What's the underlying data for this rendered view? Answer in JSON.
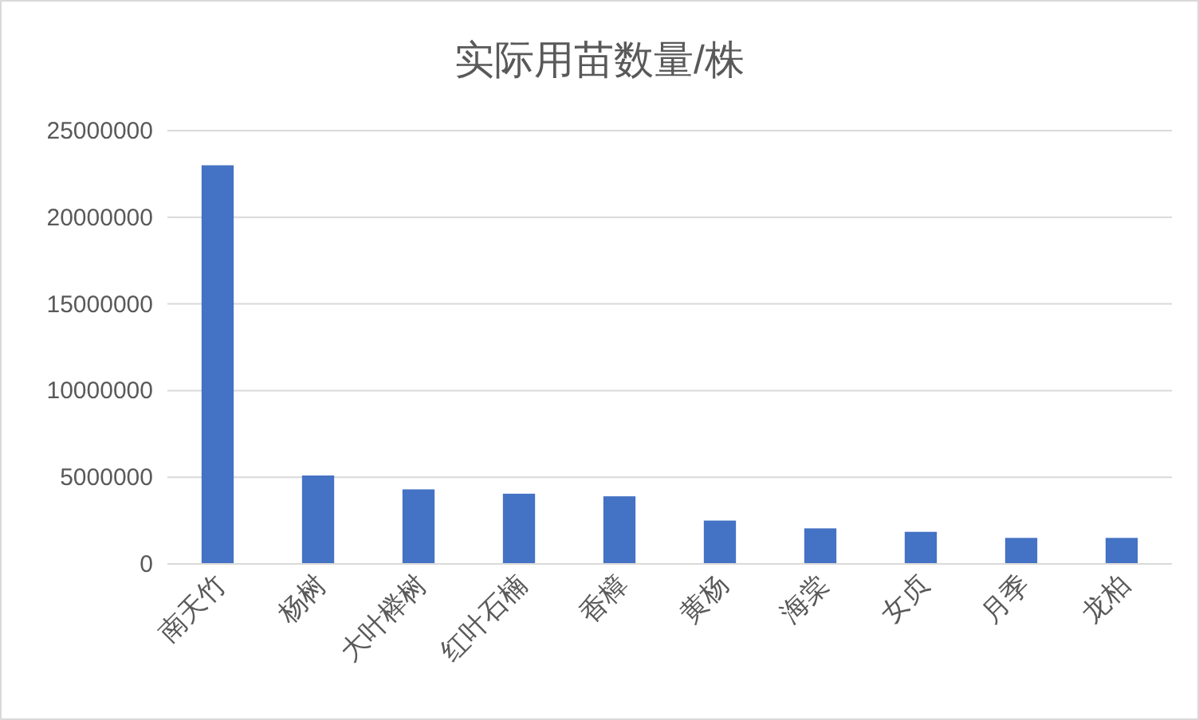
{
  "chart_data": {
    "type": "bar",
    "title": "实际用苗数量/株",
    "categories": [
      "南天竹",
      "杨树",
      "大叶榉树",
      "红叶石楠",
      "香樟",
      "黄杨",
      "海棠",
      "女贞",
      "月季",
      "龙柏"
    ],
    "values": [
      23000000,
      5100000,
      4300000,
      4050000,
      3900000,
      2500000,
      2050000,
      1850000,
      1500000,
      1500000
    ],
    "color": "#4472c4",
    "ylim": [
      0,
      25000000
    ],
    "yticks": [
      0,
      5000000,
      10000000,
      15000000,
      20000000,
      25000000
    ],
    "grid": "y"
  }
}
